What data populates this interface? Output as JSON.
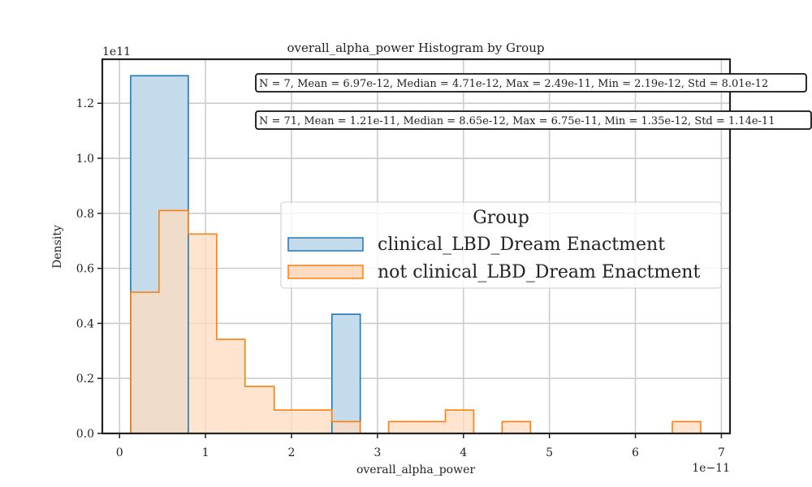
{
  "chart_data": {
    "type": "histogram",
    "title": "overall_alpha_power Histogram by Group",
    "xlabel": "overall_alpha_power",
    "ylabel": "Density",
    "x_offset_label": "1e−11",
    "y_offset_label": "1e11",
    "xlim": [
      -0.2,
      7.1
    ],
    "ylim": [
      0,
      1.36
    ],
    "x_ticks": [
      0,
      1,
      2,
      3,
      4,
      5,
      6,
      7
    ],
    "x_tick_labels": [
      "0",
      "1",
      "2",
      "3",
      "4",
      "5",
      "6",
      "7"
    ],
    "y_ticks": [
      0.0,
      0.2,
      0.4,
      0.6,
      0.8,
      1.0,
      1.2
    ],
    "y_tick_labels": [
      "0.0",
      "0.2",
      "0.4",
      "0.6",
      "0.8",
      "1.0",
      "1.2"
    ],
    "grid": true,
    "legend": {
      "title": "Group",
      "placement": "center-right"
    },
    "series": [
      {
        "name": "clinical_LBD_Dream Enactment",
        "color": "#1f77b4",
        "fill": "#c4dbec",
        "bin_edges": [
          0.13,
          0.8,
          1.46,
          1.8,
          2.13,
          2.47,
          2.8
        ],
        "values": [
          1.3,
          0.0,
          0.0,
          0.0,
          0.0,
          0.433
        ]
      },
      {
        "name": "not clinical_LBD_Dream Enactment",
        "color": "#ff7f0e",
        "fill": "#ffdcbf",
        "bin_edges": [
          0.13,
          0.46,
          0.8,
          1.13,
          1.46,
          1.8,
          2.13,
          2.47,
          2.8,
          3.13,
          3.46,
          3.79,
          4.12,
          4.45,
          4.78,
          5.11,
          5.44,
          5.77,
          6.1,
          6.43,
          6.76
        ],
        "values": [
          0.513,
          0.81,
          0.725,
          0.342,
          0.171,
          0.085,
          0.085,
          0.043,
          0.0,
          0.043,
          0.043,
          0.085,
          0.0,
          0.043,
          0.0,
          0.0,
          0.0,
          0.0,
          0.0,
          0.043
        ]
      }
    ],
    "annotations": [
      "N = 7, Mean = 6.97e-12, Median = 4.71e-12, Max = 2.49e-11, Min = 2.19e-12, Std = 8.01e-12",
      "N = 71, Mean = 1.21e-11, Median = 8.65e-12, Max = 6.75e-11, Min = 1.35e-12, Std = 1.14e-11"
    ]
  }
}
